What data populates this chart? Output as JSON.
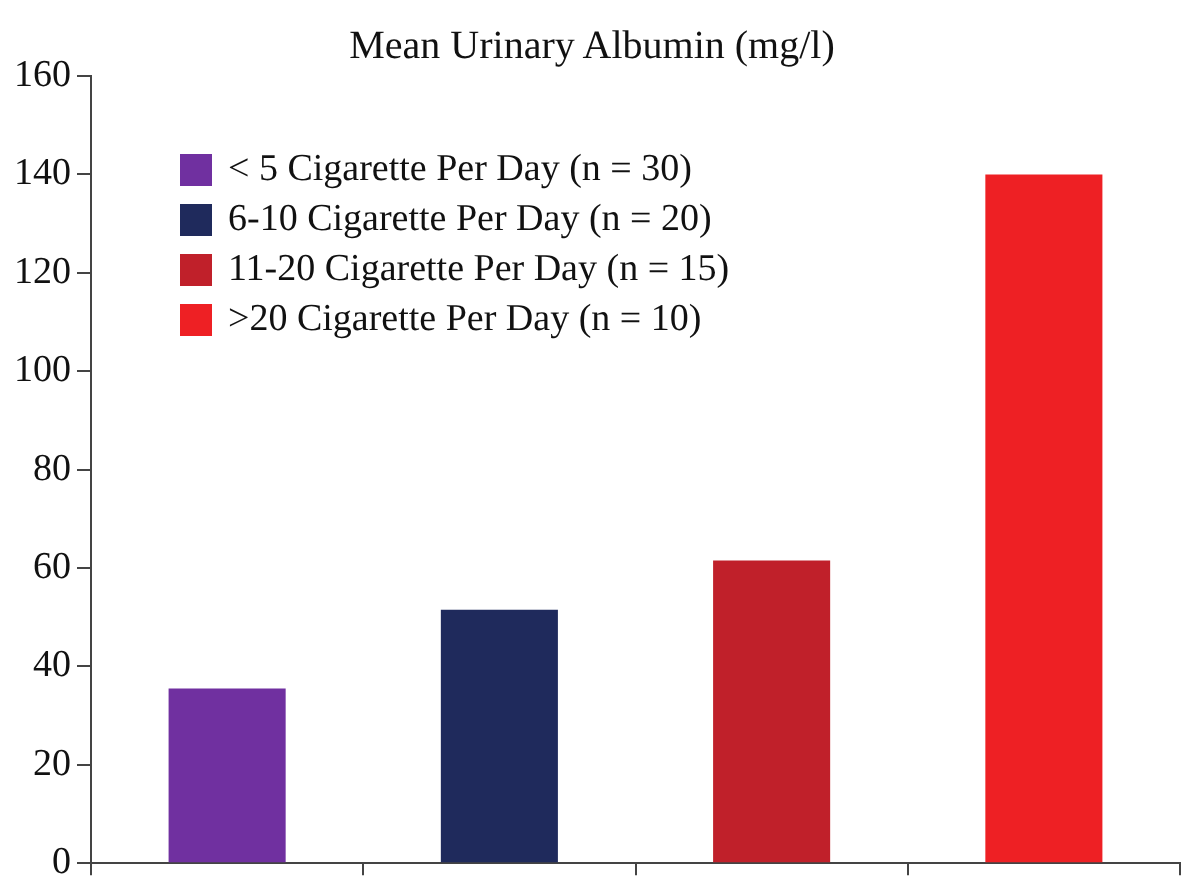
{
  "chart_data": {
    "type": "bar",
    "title": "Mean Urinary Albumin (mg/l)",
    "categories": [
      null,
      null,
      null,
      null
    ],
    "series": [
      {
        "name": "< 5 Cigarette Per Day (n = 30)",
        "color": "#7030a0",
        "values": [
          35.5,
          null,
          null,
          null
        ]
      },
      {
        "name": "6-10 Cigarette Per Day (n = 20)",
        "color": "#1f2a5c",
        "values": [
          null,
          51.5,
          null,
          null
        ]
      },
      {
        "name": "11-20 Cigarette Per Day (n = 15)",
        "color": "#c0202a",
        "values": [
          null,
          null,
          61.5,
          null
        ]
      },
      {
        "name": ">20 Cigarette Per Day (n = 10)",
        "color": "#ee2024",
        "values": [
          null,
          null,
          null,
          140
        ]
      }
    ],
    "ylim": [
      0,
      160
    ],
    "yticks": [
      0,
      20,
      40,
      60,
      80,
      100,
      120,
      140,
      160
    ],
    "grid": false,
    "legend": "top left",
    "tick_labels": "y"
  }
}
